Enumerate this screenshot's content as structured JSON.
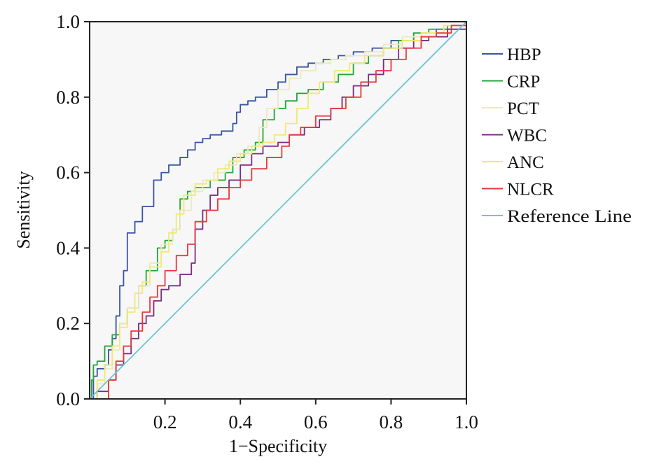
{
  "chart_data": {
    "type": "line",
    "xlabel": "1−Specificity",
    "ylabel": "Sensitivity",
    "xlim": [
      0,
      1
    ],
    "ylim": [
      0,
      1
    ],
    "x_ticks": [
      "0.2",
      "0.4",
      "0.6",
      "0.8",
      "1.0"
    ],
    "x_tick_values": [
      0.2,
      0.4,
      0.6,
      0.8,
      1.0
    ],
    "y_ticks": [
      "0.0",
      "0.2",
      "0.4",
      "0.6",
      "0.8",
      "1.0"
    ],
    "y_tick_values": [
      0.0,
      0.2,
      0.4,
      0.6,
      0.8,
      1.0
    ],
    "grid": false,
    "plot_background": "#f7f7f7",
    "legend_position": "right",
    "series": [
      {
        "name": "HBP",
        "color": "#3a55a4",
        "points": [
          [
            0,
            0
          ],
          [
            0.01,
            0.06
          ],
          [
            0.02,
            0.08
          ],
          [
            0.04,
            0.09
          ],
          [
            0.05,
            0.13
          ],
          [
            0.06,
            0.16
          ],
          [
            0.07,
            0.22
          ],
          [
            0.08,
            0.3
          ],
          [
            0.09,
            0.34
          ],
          [
            0.1,
            0.44
          ],
          [
            0.12,
            0.47
          ],
          [
            0.14,
            0.51
          ],
          [
            0.17,
            0.58
          ],
          [
            0.19,
            0.6
          ],
          [
            0.21,
            0.62
          ],
          [
            0.24,
            0.64
          ],
          [
            0.26,
            0.66
          ],
          [
            0.28,
            0.68
          ],
          [
            0.3,
            0.69
          ],
          [
            0.32,
            0.7
          ],
          [
            0.35,
            0.71
          ],
          [
            0.38,
            0.73
          ],
          [
            0.39,
            0.76
          ],
          [
            0.4,
            0.78
          ],
          [
            0.42,
            0.79
          ],
          [
            0.44,
            0.8
          ],
          [
            0.47,
            0.82
          ],
          [
            0.5,
            0.84
          ],
          [
            0.52,
            0.86
          ],
          [
            0.55,
            0.88
          ],
          [
            0.58,
            0.89
          ],
          [
            0.62,
            0.9
          ],
          [
            0.66,
            0.91
          ],
          [
            0.7,
            0.92
          ],
          [
            0.75,
            0.93
          ],
          [
            0.8,
            0.95
          ],
          [
            0.86,
            0.96
          ],
          [
            0.92,
            0.98
          ],
          [
            1.0,
            1.0
          ]
        ]
      },
      {
        "name": "CRP",
        "color": "#22a838",
        "points": [
          [
            0,
            0
          ],
          [
            0.005,
            0.05
          ],
          [
            0.01,
            0.09
          ],
          [
            0.02,
            0.1
          ],
          [
            0.04,
            0.14
          ],
          [
            0.06,
            0.17
          ],
          [
            0.08,
            0.2
          ],
          [
            0.1,
            0.24
          ],
          [
            0.13,
            0.3
          ],
          [
            0.15,
            0.34
          ],
          [
            0.18,
            0.4
          ],
          [
            0.2,
            0.42
          ],
          [
            0.22,
            0.45
          ],
          [
            0.24,
            0.53
          ],
          [
            0.26,
            0.55
          ],
          [
            0.28,
            0.56
          ],
          [
            0.32,
            0.58
          ],
          [
            0.36,
            0.6
          ],
          [
            0.38,
            0.64
          ],
          [
            0.41,
            0.66
          ],
          [
            0.44,
            0.68
          ],
          [
            0.46,
            0.74
          ],
          [
            0.49,
            0.77
          ],
          [
            0.52,
            0.79
          ],
          [
            0.55,
            0.81
          ],
          [
            0.58,
            0.82
          ],
          [
            0.62,
            0.84
          ],
          [
            0.66,
            0.86
          ],
          [
            0.7,
            0.89
          ],
          [
            0.74,
            0.91
          ],
          [
            0.78,
            0.93
          ],
          [
            0.82,
            0.95
          ],
          [
            0.86,
            0.97
          ],
          [
            0.9,
            0.98
          ],
          [
            0.95,
            0.99
          ],
          [
            1.0,
            1.0
          ]
        ]
      },
      {
        "name": "PCT",
        "color": "#ece8c2",
        "points": [
          [
            0,
            0
          ],
          [
            0.02,
            0.04
          ],
          [
            0.04,
            0.08
          ],
          [
            0.06,
            0.13
          ],
          [
            0.08,
            0.2
          ],
          [
            0.1,
            0.24
          ],
          [
            0.13,
            0.3
          ],
          [
            0.16,
            0.36
          ],
          [
            0.19,
            0.41
          ],
          [
            0.22,
            0.45
          ],
          [
            0.24,
            0.5
          ],
          [
            0.27,
            0.55
          ],
          [
            0.3,
            0.58
          ],
          [
            0.33,
            0.6
          ],
          [
            0.36,
            0.62
          ],
          [
            0.39,
            0.65
          ],
          [
            0.42,
            0.67
          ],
          [
            0.45,
            0.72
          ],
          [
            0.47,
            0.77
          ],
          [
            0.5,
            0.82
          ],
          [
            0.53,
            0.85
          ],
          [
            0.56,
            0.87
          ],
          [
            0.6,
            0.89
          ],
          [
            0.64,
            0.9
          ],
          [
            0.68,
            0.91
          ],
          [
            0.73,
            0.92
          ],
          [
            0.78,
            0.94
          ],
          [
            0.83,
            0.96
          ],
          [
            0.88,
            0.97
          ],
          [
            0.94,
            0.99
          ],
          [
            1.0,
            1.0
          ]
        ]
      },
      {
        "name": "WBC",
        "color": "#7a2e80",
        "points": [
          [
            0,
            0
          ],
          [
            0.02,
            0.02
          ],
          [
            0.05,
            0.05
          ],
          [
            0.07,
            0.09
          ],
          [
            0.09,
            0.12
          ],
          [
            0.11,
            0.16
          ],
          [
            0.13,
            0.2
          ],
          [
            0.15,
            0.22
          ],
          [
            0.17,
            0.26
          ],
          [
            0.19,
            0.29
          ],
          [
            0.21,
            0.3
          ],
          [
            0.24,
            0.33
          ],
          [
            0.27,
            0.36
          ],
          [
            0.28,
            0.45
          ],
          [
            0.3,
            0.5
          ],
          [
            0.32,
            0.54
          ],
          [
            0.34,
            0.56
          ],
          [
            0.37,
            0.58
          ],
          [
            0.4,
            0.62
          ],
          [
            0.43,
            0.65
          ],
          [
            0.46,
            0.67
          ],
          [
            0.5,
            0.68
          ],
          [
            0.53,
            0.7
          ],
          [
            0.57,
            0.72
          ],
          [
            0.61,
            0.74
          ],
          [
            0.64,
            0.77
          ],
          [
            0.67,
            0.8
          ],
          [
            0.7,
            0.83
          ],
          [
            0.74,
            0.86
          ],
          [
            0.78,
            0.9
          ],
          [
            0.82,
            0.93
          ],
          [
            0.86,
            0.95
          ],
          [
            0.9,
            0.96
          ],
          [
            0.95,
            0.98
          ],
          [
            1.0,
            1.0
          ]
        ]
      },
      {
        "name": "ANC",
        "color": "#f3e870",
        "points": [
          [
            0,
            0
          ],
          [
            0.02,
            0.05
          ],
          [
            0.04,
            0.09
          ],
          [
            0.06,
            0.14
          ],
          [
            0.08,
            0.19
          ],
          [
            0.1,
            0.23
          ],
          [
            0.12,
            0.28
          ],
          [
            0.14,
            0.31
          ],
          [
            0.16,
            0.35
          ],
          [
            0.19,
            0.39
          ],
          [
            0.21,
            0.44
          ],
          [
            0.23,
            0.49
          ],
          [
            0.25,
            0.54
          ],
          [
            0.28,
            0.57
          ],
          [
            0.31,
            0.58
          ],
          [
            0.34,
            0.61
          ],
          [
            0.37,
            0.63
          ],
          [
            0.4,
            0.65
          ],
          [
            0.43,
            0.67
          ],
          [
            0.46,
            0.68
          ],
          [
            0.49,
            0.7
          ],
          [
            0.52,
            0.73
          ],
          [
            0.55,
            0.77
          ],
          [
            0.58,
            0.81
          ],
          [
            0.61,
            0.84
          ],
          [
            0.65,
            0.87
          ],
          [
            0.69,
            0.89
          ],
          [
            0.73,
            0.91
          ],
          [
            0.78,
            0.93
          ],
          [
            0.83,
            0.95
          ],
          [
            0.88,
            0.97
          ],
          [
            0.94,
            0.99
          ],
          [
            1.0,
            1.0
          ]
        ]
      },
      {
        "name": "NLCR",
        "color": "#e8383d",
        "points": [
          [
            0,
            0
          ],
          [
            0.03,
            0.0
          ],
          [
            0.05,
            0.05
          ],
          [
            0.07,
            0.1
          ],
          [
            0.09,
            0.14
          ],
          [
            0.11,
            0.18
          ],
          [
            0.14,
            0.23
          ],
          [
            0.16,
            0.27
          ],
          [
            0.18,
            0.3
          ],
          [
            0.2,
            0.34
          ],
          [
            0.23,
            0.38
          ],
          [
            0.26,
            0.41
          ],
          [
            0.28,
            0.47
          ],
          [
            0.31,
            0.5
          ],
          [
            0.34,
            0.53
          ],
          [
            0.37,
            0.56
          ],
          [
            0.4,
            0.58
          ],
          [
            0.43,
            0.61
          ],
          [
            0.47,
            0.64
          ],
          [
            0.51,
            0.67
          ],
          [
            0.53,
            0.7
          ],
          [
            0.56,
            0.72
          ],
          [
            0.6,
            0.75
          ],
          [
            0.64,
            0.77
          ],
          [
            0.68,
            0.8
          ],
          [
            0.72,
            0.84
          ],
          [
            0.76,
            0.87
          ],
          [
            0.8,
            0.9
          ],
          [
            0.84,
            0.93
          ],
          [
            0.88,
            0.96
          ],
          [
            0.92,
            0.97
          ],
          [
            0.96,
            0.99
          ],
          [
            1.0,
            1.0
          ]
        ]
      },
      {
        "name": "Reference Line",
        "color": "#6cc4d4",
        "points": [
          [
            0,
            0
          ],
          [
            1,
            1
          ]
        ]
      }
    ]
  }
}
